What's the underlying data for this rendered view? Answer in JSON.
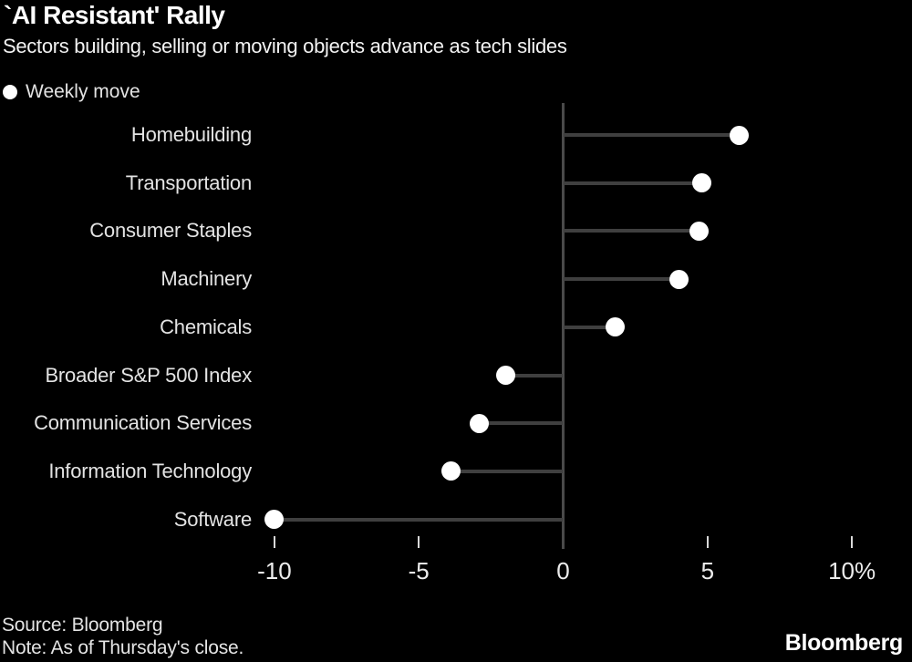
{
  "chart_data": {
    "type": "bar",
    "variant": "horizontal-lollipop",
    "title": "`AI Resistant' Rally",
    "subtitle": "Sectors building, selling or moving objects advance as tech slides",
    "legend": [
      "Weekly move"
    ],
    "legend_position": "top-left",
    "categories": [
      "Homebuilding",
      "Transportation",
      "Consumer Staples",
      "Machinery",
      "Chemicals",
      "Broader S&P 500 Index",
      "Communication Services",
      "Information Technology",
      "Software"
    ],
    "values": [
      6.1,
      4.8,
      4.7,
      4.0,
      1.8,
      -2.0,
      -2.9,
      -3.9,
      -10.0
    ],
    "unit": "%",
    "xlabel": "",
    "ylabel": "",
    "xticks": [
      -10,
      -5,
      0,
      5,
      10
    ],
    "xtick_labels": [
      "-10",
      "-5",
      "0",
      "5",
      "10%"
    ],
    "xlim": [
      -12.2,
      12.2
    ],
    "grid": false
  },
  "colors": {
    "background": "#000000",
    "title_text": "#ffffff",
    "subtitle_text": "#f2f2f2",
    "label_text": "#e3e3e3",
    "dot": "#ffffff",
    "stem": "#3f3f3f",
    "axis": "#4a4a4a",
    "tick": "#d9d9d9"
  },
  "footer": {
    "source": "Source: Bloomberg",
    "note": "Note: As of Thursday's close.",
    "brand": "Bloomberg"
  }
}
